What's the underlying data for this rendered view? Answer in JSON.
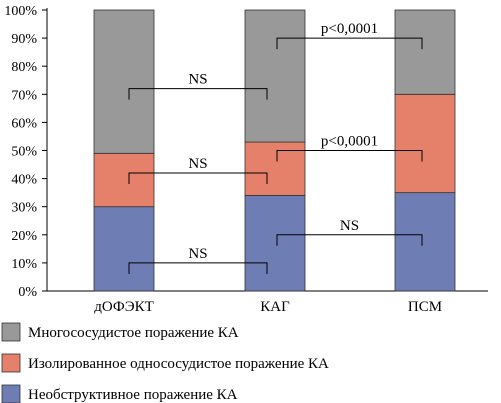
{
  "chart_data": {
    "type": "bar",
    "stacked": true,
    "percent": true,
    "categories": [
      "дОФЭКТ",
      "КАГ",
      "ПСМ"
    ],
    "series": [
      {
        "name": "Необструктивное поражение КА",
        "values": [
          30,
          34,
          35
        ],
        "color": "#6f7db5"
      },
      {
        "name": "Изолированное однососудистое поражение КА",
        "values": [
          19,
          19,
          35
        ],
        "color": "#e5806a"
      },
      {
        "name": "Многососудистое поражение КА",
        "values": [
          51,
          47,
          30
        ],
        "color": "#999999"
      }
    ],
    "ylim": [
      0,
      100
    ],
    "yticks": [
      "0%",
      "10%",
      "20%",
      "30%",
      "40%",
      "50%",
      "60%",
      "70%",
      "80%",
      "90%",
      "100%"
    ],
    "legend_position": "bottom",
    "legend_order": [
      2,
      1,
      0
    ],
    "annotations": [
      {
        "label": "NS",
        "from": 0,
        "to": 1,
        "level": 72
      },
      {
        "label": "p<0,0001",
        "from": 1,
        "to": 2,
        "level": 90
      },
      {
        "label": "NS",
        "from": 0,
        "to": 1,
        "level": 42
      },
      {
        "label": "p<0,0001",
        "from": 1,
        "to": 2,
        "level": 50
      },
      {
        "label": "NS",
        "from": 0,
        "to": 1,
        "level": 10
      },
      {
        "label": "NS",
        "from": 1,
        "to": 2,
        "level": 20
      }
    ]
  }
}
